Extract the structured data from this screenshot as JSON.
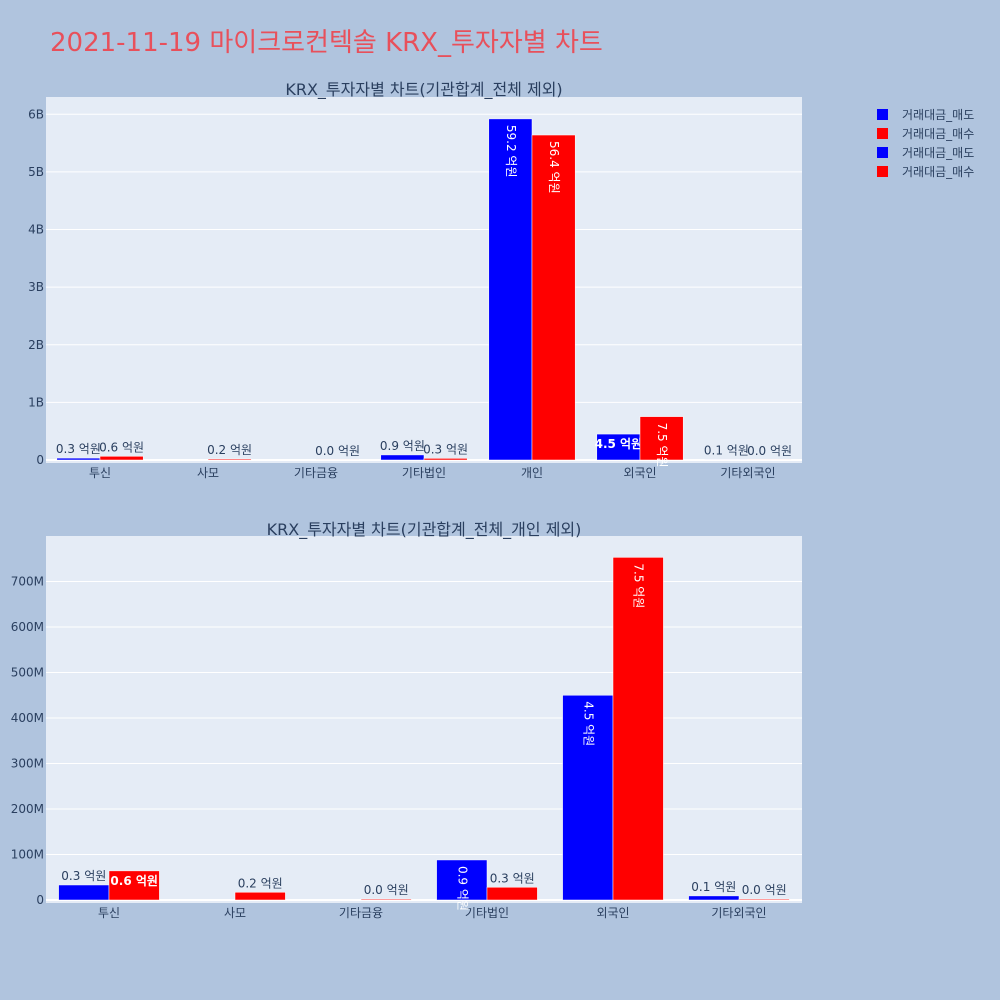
{
  "page_title": "2021-11-19 마이크로컨텍솔 KRX_투자자별 차트",
  "colors": {
    "sell": "#0000ff",
    "buy": "#ff0000",
    "plot_bg": "#e5ecf6",
    "page_bg": "#b0c4de",
    "title": "#e8505b"
  },
  "legend": [
    "거래대금_매도",
    "거래대금_매수",
    "거래대금_매도",
    "거래대금_매수"
  ],
  "chart_data": [
    {
      "type": "bar",
      "title": "KRX_투자자별 차트(기관합계_전체 제외)",
      "categories": [
        "투신",
        "사모",
        "기타금융",
        "기타법인",
        "개인",
        "외국인",
        "기타외국인"
      ],
      "series": [
        {
          "name": "거래대금_매도",
          "values": [
            33000000,
            0,
            0,
            88000000,
            5920000000,
            450000000,
            9000000
          ],
          "labels": [
            "0.3 억원",
            "",
            "",
            "0.9 억원",
            "59.2 억원",
            "4.5 억원",
            "0.1 억원"
          ]
        },
        {
          "name": "거래대금_매수",
          "values": [
            64000000,
            17000000,
            2000000,
            28000000,
            5640000000,
            753000000,
            2000000
          ],
          "labels": [
            "0.6 억원",
            "0.2 억원",
            "0.0 억원",
            "0.3 억원",
            "56.4 억원",
            "7.5 억원",
            "0.0 억원"
          ]
        }
      ],
      "yticks": [
        0,
        1000000000,
        2000000000,
        3000000000,
        4000000000,
        5000000000,
        6000000000
      ],
      "ytick_labels": [
        "0",
        "1B",
        "2B",
        "3B",
        "4B",
        "5B",
        "6B"
      ],
      "ylim": [
        0,
        6300000000
      ]
    },
    {
      "type": "bar",
      "title": "KRX_투자자별 차트(기관합계_전체_개인 제외)",
      "categories": [
        "투신",
        "사모",
        "기타금융",
        "기타법인",
        "외국인",
        "기타외국인"
      ],
      "series": [
        {
          "name": "거래대금_매도",
          "values": [
            33000000,
            0,
            0,
            88000000,
            450000000,
            9000000
          ],
          "labels": [
            "0.3 억원",
            "",
            "",
            "0.9 억원",
            "4.5 억원",
            "0.1 억원"
          ]
        },
        {
          "name": "거래대금_매수",
          "values": [
            64000000,
            17000000,
            2000000,
            28000000,
            753000000,
            2000000
          ],
          "labels": [
            "0.6 억원",
            "0.2 억원",
            "0.0 억원",
            "0.3 억원",
            "7.5 억원",
            "0.0 억원"
          ]
        }
      ],
      "yticks": [
        0,
        100000000,
        200000000,
        300000000,
        400000000,
        500000000,
        600000000,
        700000000
      ],
      "ytick_labels": [
        "0",
        "100M",
        "200M",
        "300M",
        "400M",
        "500M",
        "600M",
        "700M"
      ],
      "ylim": [
        0,
        800000000
      ]
    }
  ]
}
